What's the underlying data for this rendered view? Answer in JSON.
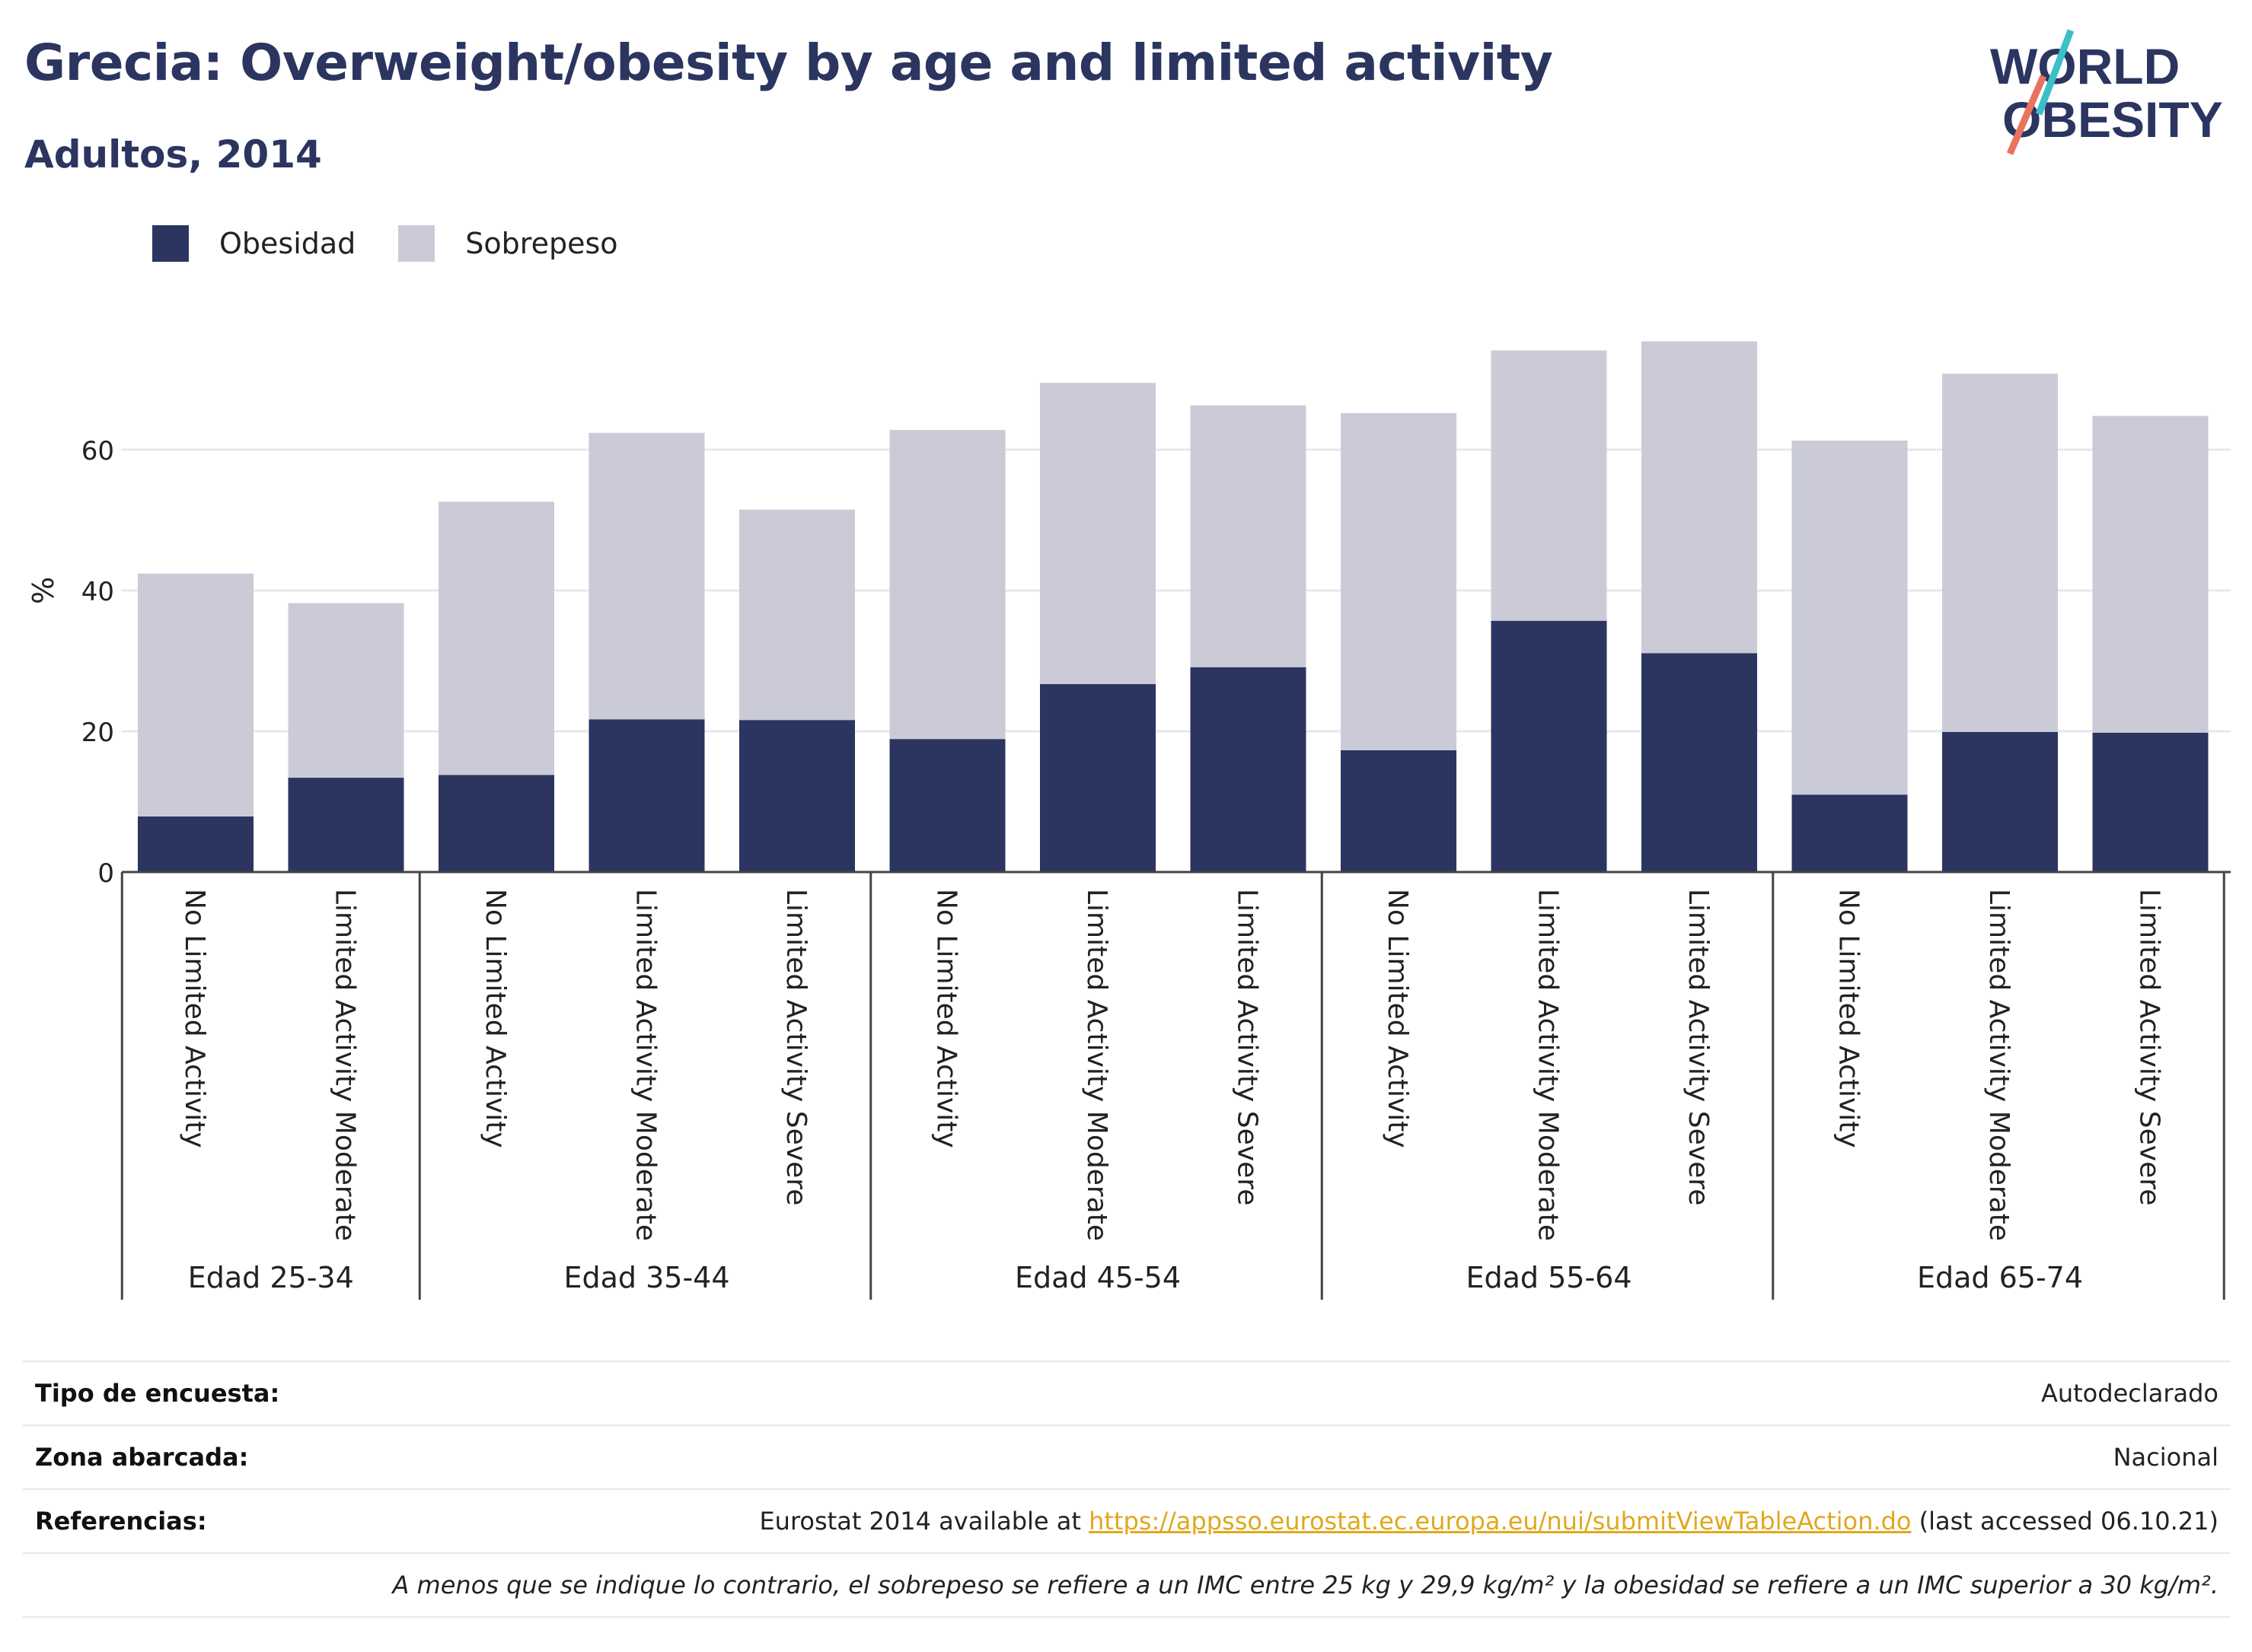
{
  "header": {
    "title": "Grecia: Overweight/obesity by age and limited activity",
    "subtitle": "Adultos, 2014",
    "logo_text_line1": "WORLD",
    "logo_text_line2": "OBESITY"
  },
  "colors": {
    "obesity": "#2b3560",
    "overweight": "#cacbd7",
    "title": "#2b3560",
    "link": "#e0a81d",
    "logo_teal": "#3bbfc8",
    "logo_coral": "#e8735f"
  },
  "chart_data": {
    "type": "bar",
    "stacked": true,
    "ylabel": "%",
    "xlabel": "",
    "ylim": [
      0,
      80
    ],
    "yticks": [
      0,
      20,
      40,
      60
    ],
    "grid": true,
    "legend_position": "top-left",
    "groups": [
      {
        "label": "Edad 25-34",
        "categories": [
          "No Limited Activity",
          "Limited Activity Moderate"
        ]
      },
      {
        "label": "Edad 35-44",
        "categories": [
          "No Limited Activity",
          "Limited Activity Moderate",
          "Limited Activity Severe"
        ]
      },
      {
        "label": "Edad 45-54",
        "categories": [
          "No Limited Activity",
          "Limited Activity Moderate",
          "Limited Activity Severe"
        ]
      },
      {
        "label": "Edad 55-64",
        "categories": [
          "No Limited Activity",
          "Limited Activity Moderate",
          "Limited Activity Severe"
        ]
      },
      {
        "label": "Edad 65-74",
        "categories": [
          "No Limited Activity",
          "Limited Activity Moderate",
          "Limited Activity Severe"
        ]
      }
    ],
    "series": [
      {
        "name": "Obesidad",
        "values": [
          7.9,
          13.4,
          13.8,
          21.7,
          21.6,
          18.9,
          26.7,
          29.1,
          17.3,
          35.7,
          31.1,
          11.0,
          19.9,
          19.8
        ]
      },
      {
        "name": "Sobrepeso",
        "values": [
          34.5,
          24.8,
          38.8,
          40.7,
          29.9,
          43.9,
          42.8,
          37.2,
          47.9,
          38.4,
          44.3,
          50.3,
          50.9,
          45.0
        ]
      }
    ]
  },
  "footer": {
    "rows": [
      {
        "label": "Tipo de encuesta:",
        "value": "Autodeclarado"
      },
      {
        "label": "Zona abarcada:",
        "value": "Nacional"
      }
    ],
    "references_label": "Referencias:",
    "references_pre": "Eurostat 2014 available at ",
    "references_link": "https://appsso.eurostat.ec.europa.eu/nui/submitViewTableAction.do",
    "references_post": " (last accessed 06.10.21)",
    "note": "A menos que se indique lo contrario, el sobrepeso se refiere a un IMC entre 25 kg y 29,9 kg/m² y la obesidad se refiere a un IMC superior a 30 kg/m²."
  }
}
